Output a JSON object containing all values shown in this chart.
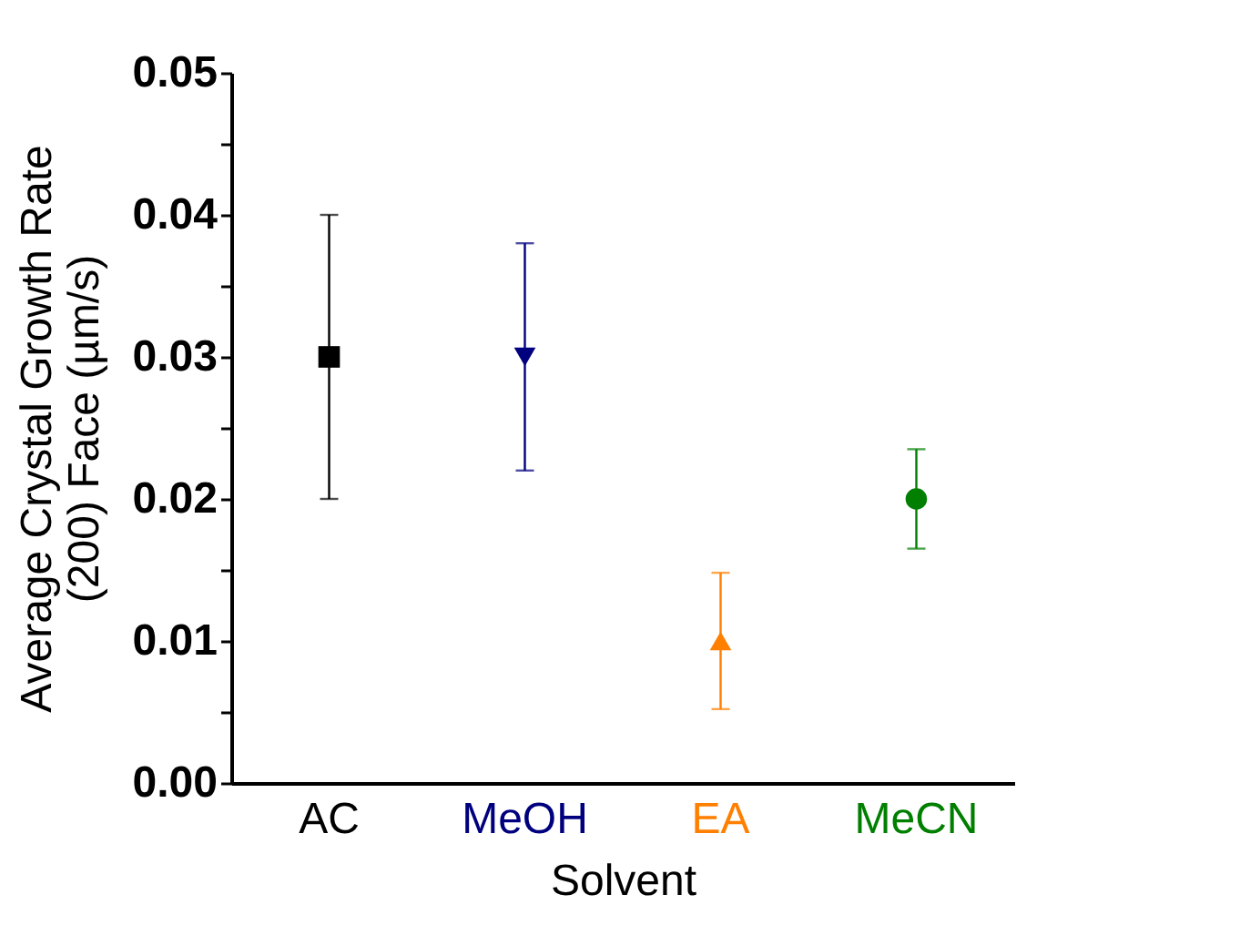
{
  "chart_data": {
    "type": "scatter",
    "xlabel": "Solvent",
    "ylabel": "Average Crystal Growth Rate\n(200) Face (µm/s)",
    "categories": [
      "AC",
      "MeOH",
      "EA",
      "MeCN"
    ],
    "series": [
      {
        "color": "#000000",
        "marker": "square",
        "values": [
          0.03,
          null,
          null,
          null
        ],
        "errors": [
          [
            0.02,
            0.04
          ],
          null,
          null,
          null
        ]
      },
      {
        "color": "#00007f",
        "marker": "triangle-down",
        "values": [
          null,
          0.03,
          null,
          null
        ],
        "errors": [
          null,
          [
            0.022,
            0.038
          ],
          null,
          null
        ]
      },
      {
        "color": "#ff7f00",
        "marker": "triangle",
        "values": [
          null,
          null,
          0.01,
          null
        ],
        "errors": [
          null,
          null,
          [
            0.0052,
            0.0148
          ],
          null
        ]
      },
      {
        "color": "#007f00",
        "marker": "circle",
        "values": [
          null,
          null,
          null,
          0.02
        ],
        "errors": [
          null,
          null,
          null,
          [
            0.0165,
            0.0235
          ]
        ]
      }
    ],
    "ylim": [
      0,
      0.05
    ],
    "yticks": [
      {
        "value": 0,
        "label": "0.00"
      },
      {
        "value": 0.005,
        "label": null
      },
      {
        "value": 0.01,
        "label": "0.01"
      },
      {
        "value": 0.015,
        "label": null
      },
      {
        "value": 0.02,
        "label": "0.02"
      },
      {
        "value": 0.025,
        "label": null
      },
      {
        "value": 0.03,
        "label": "0.03"
      },
      {
        "value": 0.035,
        "label": null
      },
      {
        "value": 0.04,
        "label": "0.04"
      },
      {
        "value": 0.045,
        "label": null
      },
      {
        "value": 0.05,
        "label": "0.05"
      }
    ],
    "grid": false,
    "legend": false
  }
}
